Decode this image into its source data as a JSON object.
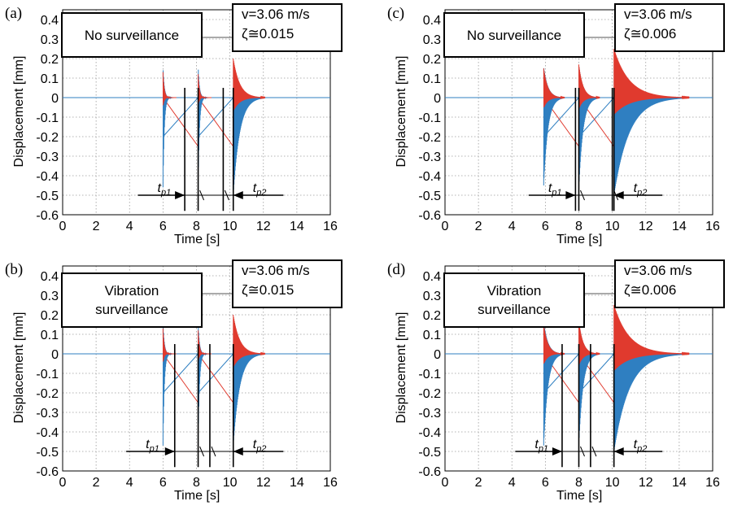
{
  "chart_data": [
    {
      "type": "line",
      "panel_label": "(a)",
      "label_box": [
        "No surveillance"
      ],
      "speed": "v=3.06 m/s",
      "damping": "ζ≅0.015",
      "xlabel": "Time [s]",
      "ylabel": "Displacement  [mm]",
      "xlim": [
        0,
        16
      ],
      "ylim": [
        -0.6,
        0.45
      ],
      "xticks": [
        0,
        2,
        4,
        6,
        8,
        10,
        12,
        14,
        16
      ],
      "yticks": [
        0.4,
        0.3,
        0.2,
        0.1,
        0,
        -0.1,
        -0.2,
        -0.3,
        -0.4,
        -0.5,
        -0.6
      ],
      "grid": true,
      "events": [
        {
          "t": 6.0,
          "red_amp": 0.13,
          "blue_amp": -0.46,
          "decay": 0.08
        },
        {
          "t": 8.1,
          "red_amp": 0.12,
          "blue_amp": -0.47,
          "decay": 0.08
        },
        {
          "t": 10.2,
          "red_amp": 0.2,
          "blue_amp": -0.5,
          "decay": 0.38
        }
      ],
      "blue_ramps": [
        [
          6.0,
          -0.2,
          8.1,
          0.0
        ],
        [
          8.1,
          -0.2,
          10.2,
          0.0
        ]
      ],
      "red_ramps": [
        [
          6.0,
          0.0,
          8.1,
          -0.25
        ],
        [
          8.1,
          0.0,
          10.2,
          -0.25
        ]
      ],
      "markers": [
        7.3,
        8.1,
        9.6,
        10.2
      ],
      "tp1": {
        "label": "tp1",
        "from": 4.5,
        "to": 7.3
      },
      "tp2": {
        "label": "tp2",
        "from": 10.2,
        "to": 13.2
      }
    },
    {
      "type": "line",
      "panel_label": "(b)",
      "label_box": [
        "Vibration",
        "surveillance"
      ],
      "speed": "v=3.06 m/s",
      "damping": "ζ≅0.015",
      "xlabel": "Time [s]",
      "ylabel": "Displacement  [mm]",
      "xlim": [
        0,
        16
      ],
      "ylim": [
        -0.6,
        0.45
      ],
      "xticks": [
        0,
        2,
        4,
        6,
        8,
        10,
        12,
        14,
        16
      ],
      "yticks": [
        0.4,
        0.3,
        0.2,
        0.1,
        0,
        -0.1,
        -0.2,
        -0.3,
        -0.4,
        -0.5,
        -0.6
      ],
      "grid": true,
      "events": [
        {
          "t": 6.0,
          "red_amp": 0.13,
          "blue_amp": -0.47,
          "decay": 0.08
        },
        {
          "t": 8.1,
          "red_amp": 0.12,
          "blue_amp": -0.47,
          "decay": 0.08
        },
        {
          "t": 10.2,
          "red_amp": 0.2,
          "blue_amp": -0.47,
          "decay": 0.38
        }
      ],
      "blue_ramps": [
        [
          6.0,
          -0.2,
          8.1,
          0.0
        ],
        [
          8.1,
          -0.2,
          10.2,
          0.0
        ]
      ],
      "red_ramps": [
        [
          6.0,
          0.0,
          8.1,
          -0.25
        ],
        [
          8.1,
          0.0,
          10.2,
          -0.25
        ]
      ],
      "markers": [
        6.7,
        8.1,
        8.8,
        10.2
      ],
      "tp1": {
        "label": "tp1",
        "from": 3.8,
        "to": 6.7
      },
      "tp2": {
        "label": "tp2",
        "from": 10.2,
        "to": 13.2
      }
    },
    {
      "type": "line",
      "panel_label": "(c)",
      "label_box": [
        "No surveillance"
      ],
      "speed": "v=3.06 m/s",
      "damping": "ζ≅0.006",
      "xlabel": "Time [s]",
      "ylabel": "Displacement  [mm]",
      "xlim": [
        0,
        16
      ],
      "ylim": [
        -0.6,
        0.45
      ],
      "xticks": [
        0,
        2,
        4,
        6,
        8,
        10,
        12,
        14,
        16
      ],
      "yticks": [
        0.4,
        0.3,
        0.2,
        0.1,
        0,
        -0.1,
        -0.2,
        -0.3,
        -0.4,
        -0.5,
        -0.6
      ],
      "grid": true,
      "events": [
        {
          "t": 5.9,
          "red_amp": 0.15,
          "blue_amp": -0.45,
          "decay": 0.25
        },
        {
          "t": 8.0,
          "red_amp": 0.17,
          "blue_amp": -0.47,
          "decay": 0.25
        },
        {
          "t": 10.1,
          "red_amp": 0.25,
          "blue_amp": -0.5,
          "decay": 0.9
        }
      ],
      "blue_ramps": [
        [
          5.9,
          -0.2,
          8.0,
          0.0
        ],
        [
          8.0,
          -0.2,
          10.1,
          0.0
        ]
      ],
      "red_ramps": [
        [
          5.9,
          0.0,
          8.0,
          -0.25
        ],
        [
          8.0,
          0.0,
          10.1,
          -0.25
        ]
      ],
      "markers": [
        7.8,
        8.0,
        10.0,
        10.1
      ],
      "tp1": {
        "label": "tp1",
        "from": 5.0,
        "to": 7.8
      },
      "tp2": {
        "label": "tp2",
        "from": 10.1,
        "to": 13.0
      }
    },
    {
      "type": "line",
      "panel_label": "(d)",
      "label_box": [
        "Vibration",
        "surveillance"
      ],
      "speed": "v=3.06 m/s",
      "damping": "ζ≅0.006",
      "xlabel": "Time [s]",
      "ylabel": "Displacement  [mm]",
      "xlim": [
        0,
        16
      ],
      "ylim": [
        -0.6,
        0.45
      ],
      "xticks": [
        0,
        2,
        4,
        6,
        8,
        10,
        12,
        14,
        16
      ],
      "yticks": [
        0.4,
        0.3,
        0.2,
        0.1,
        0,
        -0.1,
        -0.2,
        -0.3,
        -0.4,
        -0.5,
        -0.6
      ],
      "grid": true,
      "events": [
        {
          "t": 5.9,
          "red_amp": 0.15,
          "blue_amp": -0.47,
          "decay": 0.25
        },
        {
          "t": 8.0,
          "red_amp": 0.17,
          "blue_amp": -0.47,
          "decay": 0.25
        },
        {
          "t": 10.1,
          "red_amp": 0.25,
          "blue_amp": -0.5,
          "decay": 0.9
        }
      ],
      "blue_ramps": [
        [
          5.9,
          -0.2,
          8.0,
          0.0
        ],
        [
          8.0,
          -0.2,
          10.1,
          0.0
        ]
      ],
      "red_ramps": [
        [
          5.9,
          0.0,
          8.0,
          -0.25
        ],
        [
          8.0,
          0.0,
          10.1,
          -0.25
        ]
      ],
      "markers": [
        7.0,
        8.0,
        8.7,
        10.1
      ],
      "tp1": {
        "label": "tp1",
        "from": 4.2,
        "to": 7.0
      },
      "tp2": {
        "label": "tp2",
        "from": 10.1,
        "to": 13.0
      }
    }
  ],
  "colors": {
    "blue": "#2f7fc1",
    "red": "#e03a2e",
    "grid": "#9a9a9a",
    "axis": "#000000"
  }
}
